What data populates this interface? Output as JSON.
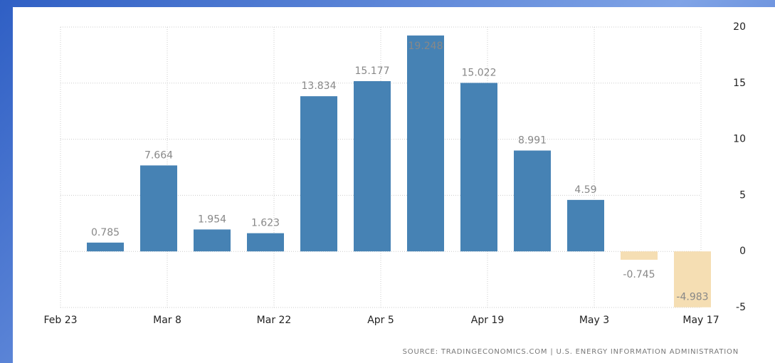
{
  "chart_data": {
    "type": "bar",
    "categories": [
      null,
      null,
      null,
      null,
      null,
      null,
      null,
      null,
      null,
      null,
      null,
      null
    ],
    "values": [
      0.785,
      7.664,
      1.954,
      1.623,
      13.834,
      15.177,
      19.248,
      15.022,
      8.991,
      4.59,
      -0.745,
      -4.983
    ],
    "color": "#4682b4",
    "negative_color": "#f5deb3",
    "xticks": [
      "Feb 23",
      "Mar 8",
      "Mar 22",
      "Apr 5",
      "Apr 19",
      "May 3",
      "May 17"
    ],
    "ylim": [
      -5,
      20
    ],
    "yticks": [
      -5,
      0,
      5,
      10,
      15,
      20
    ],
    "grid": true,
    "source": "SOURCE: TRADINGECONOMICS.COM | U.S. ENERGY INFORMATION ADMINISTRATION"
  }
}
